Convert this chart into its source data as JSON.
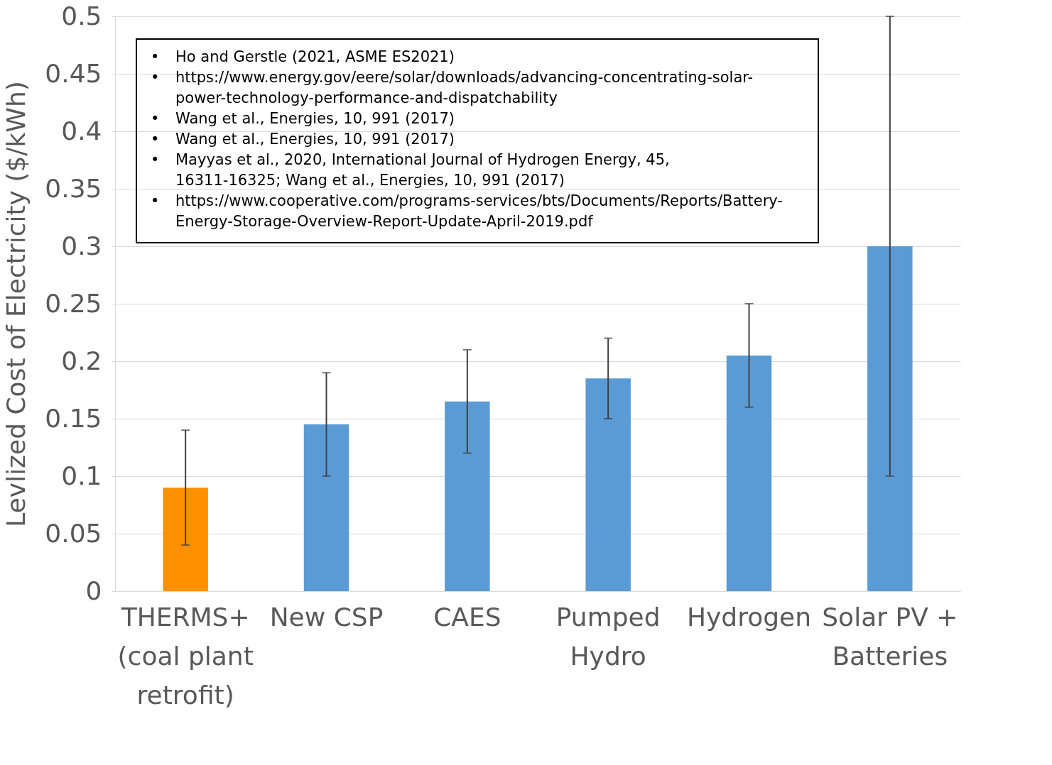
{
  "chart_data": {
    "type": "bar",
    "ylabel": "Levlized Cost of Electricity ($/kWh)",
    "categories": [
      "THERMS+\n(coal plant\nretrofit)",
      "New CSP",
      "CAES",
      "Pumped\nHydro",
      "Hydrogen",
      "Solar PV +\nBatteries"
    ],
    "values": [
      0.09,
      0.145,
      0.165,
      0.185,
      0.205,
      0.3
    ],
    "colors": [
      "#ff9000",
      "#5b9bd5",
      "#5b9bd5",
      "#5b9bd5",
      "#5b9bd5",
      "#5b9bd5"
    ],
    "errors": [
      [
        0.04,
        0.14
      ],
      [
        0.1,
        0.19
      ],
      [
        0.12,
        0.21
      ],
      [
        0.15,
        0.22
      ],
      [
        0.16,
        0.25
      ],
      [
        0.1,
        0.5
      ]
    ],
    "ylim": [
      0,
      0.5
    ],
    "yticks": [
      0,
      0.05,
      0.1,
      0.15,
      0.2,
      0.25,
      0.3,
      0.35,
      0.4,
      0.45,
      0.5
    ],
    "grid": "y",
    "legend": false,
    "annotations": [
      "• Ho and Gerstle (2021, ASME ES2021)",
      "• https://www.energy.gov/eere/solar/downloads/advancing-concentrating-solar-power-technology-performance-and-dispatchability",
      "• Wang et al., Energies, 10, 991 (2017)",
      "• Wang et al., Energies, 10, 991 (2017)",
      "• Mayyas et al., 2020, International Journal of Hydrogen Energy, 45, 16311-16325; Wang et al., Energies, 10, 991 (2017)",
      "• https://www.cooperative.com/programs-services/bts/Documents/Reports/Battery-Energy-Storage-Overview-Report-Update-April-2019.pdf"
    ]
  }
}
